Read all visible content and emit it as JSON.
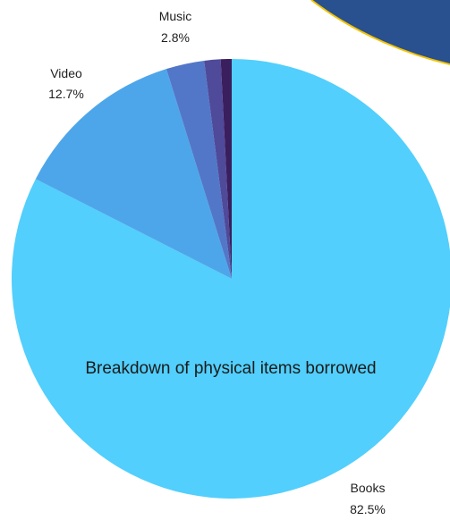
{
  "chart_data": {
    "type": "pie",
    "title": "Breakdown of physical items borrowed",
    "slices": [
      {
        "label": "Books",
        "value_label": "82.5%",
        "value": 82.5,
        "color": "#52cffc"
      },
      {
        "label": "Video",
        "value_label": "12.7%",
        "value": 12.7,
        "color": "#4ea6ea"
      },
      {
        "label": "Music",
        "value_label": "2.8%",
        "value": 2.8,
        "color": "#5277c8"
      },
      {
        "label": "",
        "value_label": "",
        "value": 1.2,
        "color": "#4f4a9a"
      },
      {
        "label": "",
        "value_label": "",
        "value": 0.8,
        "color": "#3a1e5e"
      }
    ]
  },
  "colors": {
    "banner": "#29508f",
    "banner_edge": "#f2c300"
  }
}
